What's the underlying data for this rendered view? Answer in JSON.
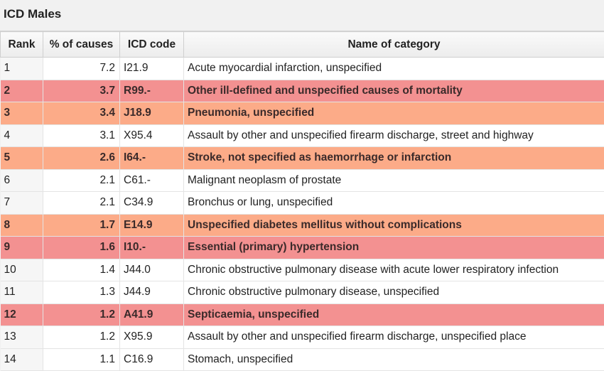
{
  "panel": {
    "title": "ICD Males"
  },
  "table": {
    "headers": {
      "rank": "Rank",
      "pct": "% of causes",
      "icd": "ICD code",
      "name": "Name of category"
    },
    "rows": [
      {
        "rank": "1",
        "pct": "7.2",
        "icd": "I21.9",
        "name": "Acute myocardial infarction, unspecified",
        "highlight": "none"
      },
      {
        "rank": "2",
        "pct": "3.7",
        "icd": "R99.-",
        "name": "Other ill-defined and unspecified causes of mortality",
        "highlight": "red"
      },
      {
        "rank": "3",
        "pct": "3.4",
        "icd": "J18.9",
        "name": "Pneumonia, unspecified",
        "highlight": "orange"
      },
      {
        "rank": "4",
        "pct": "3.1",
        "icd": "X95.4",
        "name": "Assault by other and unspecified firearm discharge, street and highway",
        "highlight": "none"
      },
      {
        "rank": "5",
        "pct": "2.6",
        "icd": "I64.-",
        "name": "Stroke, not specified as haemorrhage or infarction",
        "highlight": "orange"
      },
      {
        "rank": "6",
        "pct": "2.1",
        "icd": "C61.-",
        "name": "Malignant neoplasm of prostate",
        "highlight": "none"
      },
      {
        "rank": "7",
        "pct": "2.1",
        "icd": "C34.9",
        "name": "Bronchus or lung, unspecified",
        "highlight": "none"
      },
      {
        "rank": "8",
        "pct": "1.7",
        "icd": "E14.9",
        "name": "Unspecified diabetes mellitus without complications",
        "highlight": "orange"
      },
      {
        "rank": "9",
        "pct": "1.6",
        "icd": "I10.-",
        "name": "Essential (primary) hypertension",
        "highlight": "red"
      },
      {
        "rank": "10",
        "pct": "1.4",
        "icd": "J44.0",
        "name": "Chronic obstructive pulmonary disease with acute lower respiratory infection",
        "highlight": "none"
      },
      {
        "rank": "11",
        "pct": "1.3",
        "icd": "J44.9",
        "name": "Chronic obstructive pulmonary disease, unspecified",
        "highlight": "none"
      },
      {
        "rank": "12",
        "pct": "1.2",
        "icd": "A41.9",
        "name": "Septicaemia, unspecified",
        "highlight": "red"
      },
      {
        "rank": "13",
        "pct": "1.2",
        "icd": "X95.9",
        "name": "Assault by other and unspecified firearm discharge, unspecified place",
        "highlight": "none"
      },
      {
        "rank": "14",
        "pct": "1.1",
        "icd": "C16.9",
        "name": "Stomach, unspecified",
        "highlight": "none"
      }
    ],
    "highlight_colors": {
      "red": "#f39191",
      "orange": "#fcab88"
    }
  }
}
